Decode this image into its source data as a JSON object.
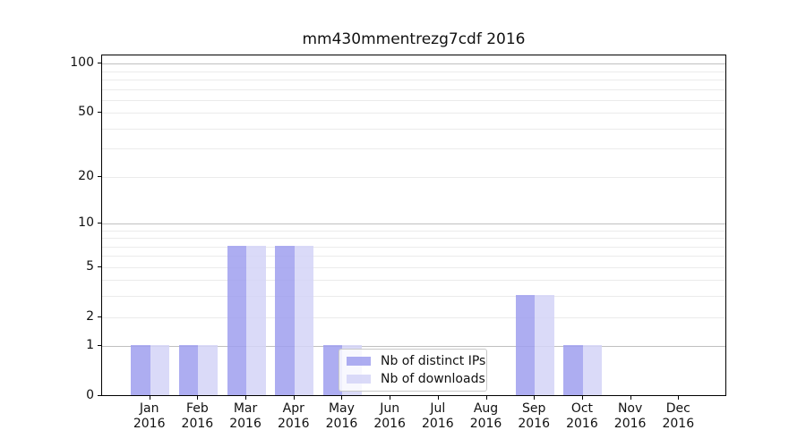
{
  "chart_data": {
    "type": "bar",
    "title": "mm430mmentrezg7cdf 2016",
    "year": "2016",
    "categories": [
      "Jan",
      "Feb",
      "Mar",
      "Apr",
      "May",
      "Jun",
      "Jul",
      "Aug",
      "Sep",
      "Oct",
      "Nov",
      "Dec"
    ],
    "series": [
      {
        "name": "Nb of distinct IPs",
        "color": "#9f9fef",
        "values": [
          1,
          1,
          7,
          7,
          1,
          0,
          0,
          0,
          3,
          1,
          0,
          0
        ]
      },
      {
        "name": "Nb of downloads",
        "color": "#d4d4f7",
        "values": [
          1,
          1,
          7,
          7,
          1,
          0,
          0,
          0,
          3,
          1,
          0,
          0
        ]
      }
    ],
    "yscale": "log1p",
    "ylim": [
      0,
      114
    ],
    "yticks": [
      0,
      1,
      2,
      5,
      10,
      20,
      50,
      100
    ],
    "ytick_labels": [
      "0",
      "1",
      "2",
      "5",
      "10",
      "20",
      "50",
      "100"
    ],
    "major_gridlines": [
      1,
      10,
      100
    ],
    "minor_gridlines": [
      2,
      3,
      4,
      5,
      6,
      7,
      8,
      9,
      20,
      30,
      40,
      50,
      60,
      70,
      80,
      90
    ],
    "grid": true,
    "legend_position": "inside-lower-center"
  },
  "colors": {
    "background": "#ffffff",
    "axis": "#000000",
    "grid_major": "#c0c0c0",
    "grid_minor": "#ebebeb",
    "legend_border": "#c9c9c9",
    "distinct_ips_bar": "#9f9fef",
    "downloads_bar": "#d4d4f7"
  }
}
